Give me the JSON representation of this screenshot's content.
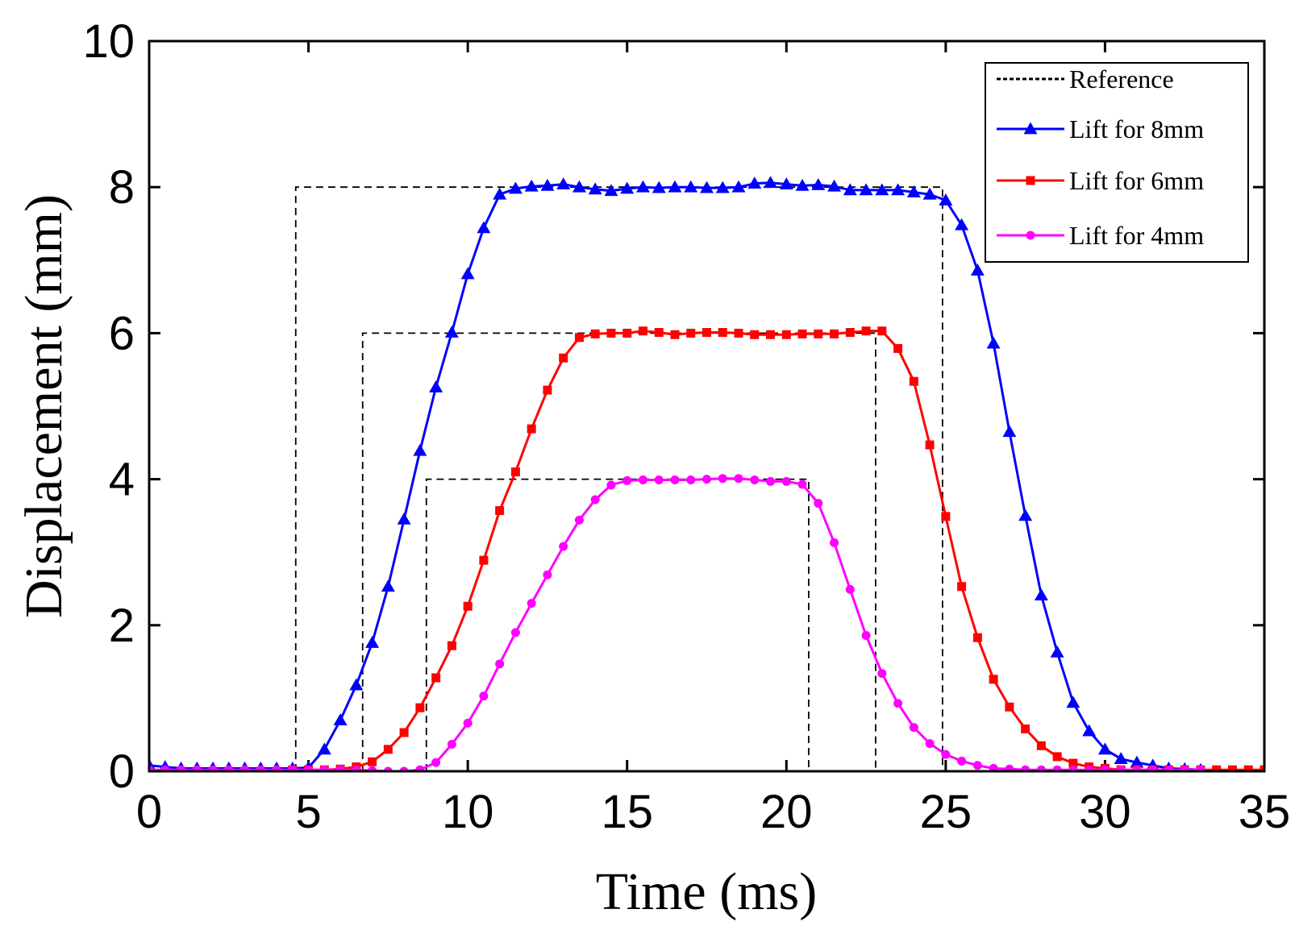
{
  "chart_data": {
    "type": "line",
    "title": "",
    "xlabel": "Time (ms)",
    "ylabel": "Displacement (mm)",
    "xlim": [
      0,
      35
    ],
    "ylim": [
      0,
      10
    ],
    "xticks": [
      0,
      5,
      10,
      15,
      20,
      25,
      30,
      35
    ],
    "yticks": [
      0,
      2,
      4,
      6,
      8,
      10
    ],
    "legend_position": "top-right",
    "series": [
      {
        "name": "Reference",
        "color": "#000000",
        "style": "dashed",
        "marker": "none",
        "traces": [
          {
            "x": [
              4.6,
              4.6,
              24.9,
              24.9
            ],
            "y": [
              0,
              8,
              8,
              0
            ]
          },
          {
            "x": [
              6.7,
              6.7,
              22.8,
              22.8
            ],
            "y": [
              0,
              6,
              6,
              0
            ]
          },
          {
            "x": [
              8.7,
              8.7,
              20.7,
              20.7
            ],
            "y": [
              0,
              4,
              4,
              0
            ]
          }
        ]
      },
      {
        "name": "Lift for 8mm",
        "color": "#0000ff",
        "style": "solid",
        "marker": "triangle",
        "x": [
          0,
          0.5,
          1,
          1.5,
          2,
          2.5,
          3,
          3.5,
          4,
          4.5,
          5,
          5.5,
          6,
          6.5,
          7,
          7.5,
          8,
          8.5,
          9,
          9.5,
          10,
          10.5,
          11,
          11.5,
          12,
          12.5,
          13,
          13.5,
          14,
          14.5,
          15,
          15.5,
          16,
          16.5,
          17,
          17.5,
          18,
          18.5,
          19,
          19.5,
          20,
          20.5,
          21,
          21.5,
          22,
          22.5,
          23,
          23.5,
          24,
          24.5,
          25,
          25.5,
          26,
          26.5,
          27,
          27.5,
          28,
          28.5,
          29,
          29.5,
          30,
          30.5,
          31,
          31.5,
          32,
          32.5,
          33
        ],
        "y": [
          0.08,
          0.06,
          0.04,
          0.04,
          0.04,
          0.04,
          0.04,
          0.04,
          0.04,
          0.04,
          0.05,
          0.3,
          0.7,
          1.18,
          1.76,
          2.53,
          3.45,
          4.39,
          5.26,
          6.01,
          6.81,
          7.44,
          7.9,
          7.98,
          8.01,
          8.02,
          8.04,
          8.0,
          7.97,
          7.95,
          7.98,
          8.0,
          7.99,
          8.0,
          8.0,
          7.99,
          7.99,
          8.0,
          8.05,
          8.06,
          8.04,
          8.02,
          8.03,
          8.01,
          7.96,
          7.96,
          7.96,
          7.96,
          7.93,
          7.9,
          7.82,
          7.48,
          6.86,
          5.86,
          4.65,
          3.5,
          2.41,
          1.63,
          0.94,
          0.55,
          0.3,
          0.17,
          0.12,
          0.08,
          0.04,
          0.03,
          0.02
        ]
      },
      {
        "name": "Lift for 6mm",
        "color": "#ff0000",
        "style": "solid",
        "marker": "square",
        "x": [
          4.5,
          5,
          5.5,
          6,
          6.5,
          7,
          7.5,
          8,
          8.5,
          9,
          9.5,
          10,
          10.5,
          11,
          11.5,
          12,
          12.5,
          13,
          13.5,
          14,
          14.5,
          15,
          15.5,
          16,
          16.5,
          17,
          17.5,
          18,
          18.5,
          19,
          19.5,
          20,
          20.5,
          21,
          21.5,
          22,
          22.5,
          23,
          23.5,
          24,
          24.5,
          25,
          25.5,
          26,
          26.5,
          27,
          27.5,
          28,
          28.5,
          29,
          29.5,
          30,
          30.5,
          31,
          31.5,
          32,
          32.5,
          33,
          33.5,
          34,
          34.5,
          35
        ],
        "y": [
          0.02,
          0.02,
          0.02,
          0.03,
          0.06,
          0.13,
          0.3,
          0.53,
          0.87,
          1.28,
          1.72,
          2.26,
          2.89,
          3.57,
          4.1,
          4.69,
          5.22,
          5.66,
          5.94,
          5.99,
          6.0,
          6.0,
          6.03,
          6.01,
          5.98,
          6.0,
          6.01,
          6.01,
          6.0,
          5.98,
          5.98,
          5.98,
          5.99,
          5.99,
          5.99,
          6.01,
          6.03,
          6.03,
          5.79,
          5.34,
          4.47,
          3.49,
          2.53,
          1.83,
          1.26,
          0.88,
          0.58,
          0.35,
          0.2,
          0.11,
          0.06,
          0.04,
          0.02,
          0.02,
          0.02,
          0.02,
          0.02,
          0.02,
          0.02,
          0.02,
          0.02,
          0.02
        ]
      },
      {
        "name": "Lift for 4mm",
        "color": "#ff00ff",
        "style": "solid",
        "marker": "circle",
        "x": [
          0,
          0.5,
          1,
          1.5,
          2,
          2.5,
          3,
          3.5,
          4,
          4.5,
          5,
          5.5,
          6,
          6.5,
          7,
          7.5,
          8,
          8.5,
          9,
          9.5,
          10,
          10.5,
          11,
          11.5,
          12,
          12.5,
          13,
          13.5,
          14,
          14.5,
          15,
          15.5,
          16,
          16.5,
          17,
          17.5,
          18,
          18.5,
          19,
          19.5,
          20,
          20.5,
          21,
          21.5,
          22,
          22.5,
          23,
          23.5,
          24,
          24.5,
          25,
          25.5,
          26,
          26.5,
          27,
          27.5,
          28,
          28.5,
          29,
          29.5,
          30,
          30.5,
          31,
          31.5,
          32,
          32.5,
          33
        ],
        "y": [
          0.02,
          0.02,
          0.02,
          0.02,
          0.02,
          0.02,
          0.02,
          0.02,
          0.02,
          0.02,
          0.02,
          0.02,
          0.02,
          0.02,
          0.01,
          0.0,
          0.0,
          0.02,
          0.12,
          0.37,
          0.66,
          1.03,
          1.47,
          1.9,
          2.3,
          2.69,
          3.08,
          3.44,
          3.72,
          3.92,
          3.98,
          3.99,
          3.99,
          3.99,
          3.99,
          4.0,
          4.01,
          4.01,
          3.99,
          3.97,
          3.97,
          3.93,
          3.67,
          3.13,
          2.49,
          1.86,
          1.34,
          0.93,
          0.6,
          0.38,
          0.23,
          0.14,
          0.08,
          0.04,
          0.03,
          0.02,
          0.02,
          0.02,
          0.02,
          0.02,
          0.02,
          0.02,
          0.02,
          0.02,
          0.02,
          0.02,
          0.02
        ]
      }
    ]
  }
}
